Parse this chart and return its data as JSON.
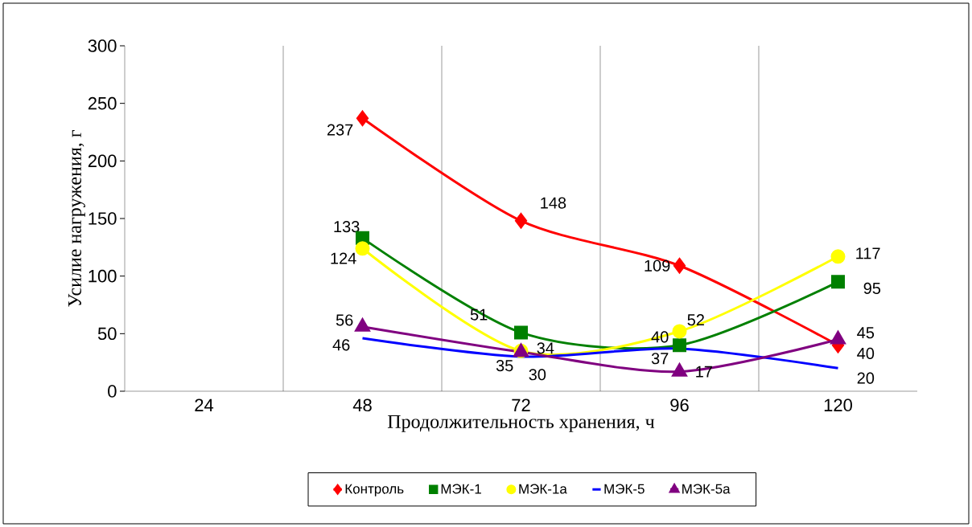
{
  "chart_data": {
    "type": "line",
    "xlabel": "Продолжительность хранения, ч",
    "ylabel": "Усилие нагружения, г",
    "categories": [
      "24",
      "48",
      "72",
      "96",
      "120"
    ],
    "series": [
      {
        "name": "Контроль",
        "color": "#ff0000",
        "marker": "diamond",
        "values": [
          null,
          237,
          148,
          109,
          40
        ]
      },
      {
        "name": "МЭК-1",
        "color": "#008000",
        "marker": "square",
        "values": [
          null,
          133,
          51,
          40,
          95
        ]
      },
      {
        "name": "МЭК-1а",
        "color": "#ffff00",
        "marker": "circle",
        "values": [
          null,
          124,
          35,
          52,
          117
        ]
      },
      {
        "name": "МЭК-5",
        "color": "#0000ff",
        "marker": "none",
        "values": [
          null,
          46,
          30,
          37,
          20
        ]
      },
      {
        "name": "МЭК-5а",
        "color": "#800080",
        "marker": "triangle",
        "values": [
          null,
          56,
          34,
          17,
          45
        ]
      }
    ],
    "ylim": [
      0,
      300
    ],
    "yticks": [
      0,
      50,
      100,
      150,
      200,
      250,
      300
    ],
    "grid": "x",
    "legend": "bottom",
    "data_labels": true
  }
}
